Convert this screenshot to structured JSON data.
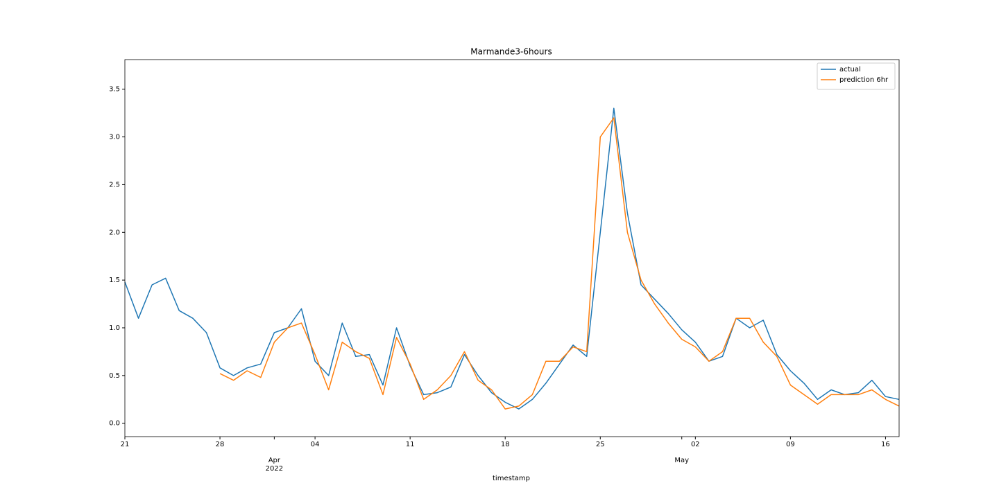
{
  "chart_data": {
    "type": "line",
    "title": "Marmande3-6hours",
    "x_label": "timestamp",
    "x": [
      "2022-03-21",
      "2022-03-22",
      "2022-03-23",
      "2022-03-24",
      "2022-03-25",
      "2022-03-26",
      "2022-03-27",
      "2022-03-28",
      "2022-03-29",
      "2022-03-30",
      "2022-03-31",
      "2022-04-01",
      "2022-04-02",
      "2022-04-03",
      "2022-04-04",
      "2022-04-05",
      "2022-04-06",
      "2022-04-07",
      "2022-04-08",
      "2022-04-09",
      "2022-04-10",
      "2022-04-11",
      "2022-04-12",
      "2022-04-13",
      "2022-04-14",
      "2022-04-15",
      "2022-04-16",
      "2022-04-17",
      "2022-04-18",
      "2022-04-19",
      "2022-04-20",
      "2022-04-21",
      "2022-04-22",
      "2022-04-23",
      "2022-04-24",
      "2022-04-25",
      "2022-04-26",
      "2022-04-27",
      "2022-04-28",
      "2022-04-29",
      "2022-04-30",
      "2022-05-01",
      "2022-05-02",
      "2022-05-03",
      "2022-05-04",
      "2022-05-05",
      "2022-05-06",
      "2022-05-07",
      "2022-05-08",
      "2022-05-09",
      "2022-05-10",
      "2022-05-11",
      "2022-05-12",
      "2022-05-13",
      "2022-05-14",
      "2022-05-15",
      "2022-05-16",
      "2022-05-17"
    ],
    "series": [
      {
        "name": "actual",
        "color": "#1f77b4",
        "values": [
          1.48,
          1.1,
          1.45,
          1.52,
          1.18,
          1.1,
          0.95,
          0.58,
          0.5,
          0.58,
          0.62,
          0.95,
          1.0,
          1.2,
          0.65,
          0.5,
          1.05,
          0.7,
          0.72,
          0.4,
          1.0,
          0.6,
          0.3,
          0.32,
          0.38,
          0.72,
          0.5,
          0.32,
          0.22,
          0.15,
          0.25,
          0.42,
          0.62,
          0.82,
          0.7,
          2.0,
          3.3,
          2.2,
          1.45,
          1.3,
          1.15,
          0.98,
          0.85,
          0.65,
          0.7,
          1.1,
          1.0,
          1.08,
          0.72,
          0.55,
          0.42,
          0.25,
          0.35,
          0.3,
          0.32,
          0.45,
          0.28,
          0.25
        ]
      },
      {
        "name": "prediction 6hr",
        "color": "#ff7f0e",
        "values": [
          null,
          null,
          null,
          null,
          null,
          null,
          null,
          0.52,
          0.45,
          0.55,
          0.48,
          0.85,
          1.0,
          1.05,
          0.72,
          0.35,
          0.85,
          0.75,
          0.68,
          0.3,
          0.9,
          0.62,
          0.25,
          0.35,
          0.5,
          0.75,
          0.45,
          0.35,
          0.15,
          0.18,
          0.3,
          0.65,
          0.65,
          0.8,
          0.75,
          3.0,
          3.2,
          2.0,
          1.5,
          1.25,
          1.05,
          0.88,
          0.8,
          0.65,
          0.75,
          1.1,
          1.1,
          0.85,
          0.7,
          0.4,
          0.3,
          0.2,
          0.3,
          0.3,
          0.3,
          0.35,
          0.25,
          0.18
        ]
      }
    ],
    "xlim": [
      "2022-03-21",
      "2022-05-17"
    ],
    "xticks": [
      {
        "value": "2022-03-21",
        "label": "21"
      },
      {
        "value": "2022-03-28",
        "label": "28"
      },
      {
        "value": "2022-04-04",
        "label": "04"
      },
      {
        "value": "2022-04-11",
        "label": "11"
      },
      {
        "value": "2022-04-18",
        "label": "18"
      },
      {
        "value": "2022-04-25",
        "label": "25"
      },
      {
        "value": "2022-05-02",
        "label": "02"
      },
      {
        "value": "2022-05-09",
        "label": "09"
      },
      {
        "value": "2022-05-16",
        "label": "16"
      }
    ],
    "xmonth_ticks": [
      {
        "value": "2022-04-01",
        "label": "Apr\n2022"
      },
      {
        "value": "2022-05-01",
        "label": "May"
      }
    ],
    "ylim": [
      -0.14,
      3.81
    ],
    "yticks": [
      {
        "value": 0,
        "label": "0.0"
      },
      0.5,
      {
        "value": 1,
        "label": "1.0"
      },
      1.5,
      {
        "value": 2,
        "label": "2.0"
      },
      2.5,
      {
        "value": 3,
        "label": "3.0"
      },
      3.5
    ],
    "legend": "upper right",
    "grid": false
  }
}
